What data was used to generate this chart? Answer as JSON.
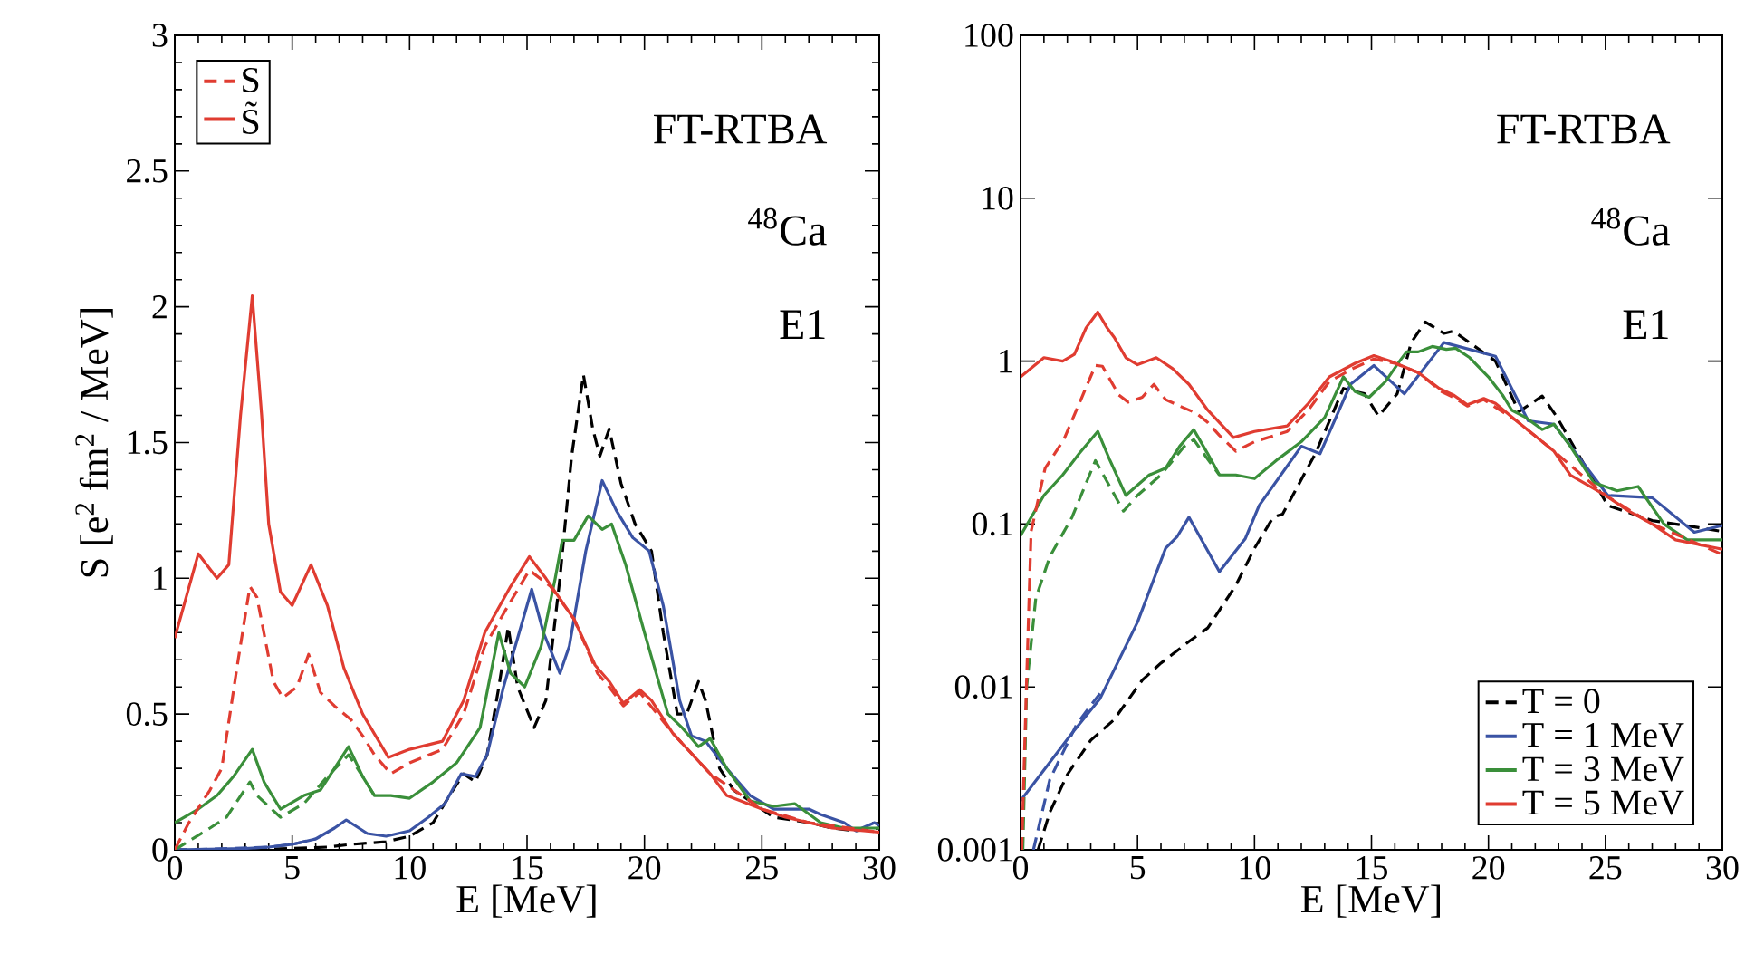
{
  "chart_data": [
    {
      "type": "line",
      "xlabel": "E [MeV]",
      "ylabel": "S [e$^{2}$ fm$^{2}$ / MeV]",
      "xlim": [
        0,
        30
      ],
      "ylim": [
        0,
        3
      ],
      "xticks": [
        0,
        5,
        10,
        15,
        20,
        25,
        30
      ],
      "yticks": [
        0,
        0.5,
        1,
        1.5,
        2,
        2.5,
        3
      ],
      "legend": "top left",
      "annotations": [
        "FT-RTBA",
        "$^{48}$Ca",
        "E1"
      ],
      "series": [
        {
          "color": "#000000",
          "line_style": "dashed",
          "x": [
            0,
            3,
            5,
            6.5,
            7.5,
            9,
            10,
            11,
            11.7,
            12.3,
            12.8,
            13.3,
            13.8,
            14.2,
            14.6,
            15.3,
            15.8,
            16.4,
            16.9,
            17.4,
            17.8,
            18.1,
            18.5,
            19,
            19.6,
            20.3,
            20.8,
            21.4,
            21.8,
            22.3,
            22.6,
            23.2,
            23.8,
            24.5,
            25.5,
            27,
            28,
            29,
            30
          ],
          "values": [
            0,
            0,
            0.005,
            0.01,
            0.02,
            0.03,
            0.05,
            0.1,
            0.2,
            0.28,
            0.25,
            0.35,
            0.6,
            0.82,
            0.6,
            0.45,
            0.55,
            1.0,
            1.45,
            1.75,
            1.55,
            1.45,
            1.55,
            1.35,
            1.2,
            1.1,
            0.8,
            0.5,
            0.5,
            0.62,
            0.55,
            0.3,
            0.22,
            0.18,
            0.12,
            0.1,
            0.08,
            0.07,
            0.08
          ]
        },
        {
          "color": "#3a53a4",
          "line_style": "solid",
          "x": [
            0,
            3,
            4,
            5,
            6,
            6.8,
            7.3,
            8.2,
            9,
            10,
            10.8,
            11.5,
            12.2,
            12.8,
            13.3,
            14,
            14.5,
            15.2,
            15.7,
            16.4,
            16.8,
            17.5,
            18.2,
            18.8,
            19.5,
            20.2,
            20.8,
            21.5,
            22,
            22.6,
            23.5,
            24.5,
            25.5,
            27,
            27.5,
            28.5,
            29,
            29.8,
            30
          ],
          "values": [
            0,
            0.005,
            0.01,
            0.02,
            0.04,
            0.08,
            0.11,
            0.06,
            0.05,
            0.07,
            0.12,
            0.17,
            0.28,
            0.27,
            0.35,
            0.6,
            0.75,
            0.96,
            0.8,
            0.65,
            0.75,
            1.1,
            1.36,
            1.25,
            1.15,
            1.1,
            0.9,
            0.55,
            0.42,
            0.4,
            0.3,
            0.2,
            0.15,
            0.15,
            0.13,
            0.1,
            0.07,
            0.1,
            0.09
          ]
        },
        {
          "color": "#3a53a4",
          "line_style": "dashed",
          "x": [
            0,
            1,
            2,
            3,
            4,
            5,
            6
          ],
          "values": [
            0,
            0.001,
            0.004,
            0.007,
            0.01,
            0.02,
            0.04
          ]
        },
        {
          "color": "#3a8f3a",
          "line_style": "solid",
          "x": [
            0,
            1,
            1.8,
            2.5,
            3.3,
            3.8,
            4.5,
            5.5,
            6.2,
            6.8,
            7.4,
            8,
            8.5,
            9.2,
            10,
            11,
            12,
            13,
            13.8,
            14.3,
            14.9,
            15.6,
            16.2,
            16.5,
            17,
            17.6,
            18.2,
            18.6,
            19.2,
            20,
            20.6,
            21,
            21.6,
            22.3,
            22.8,
            23.5,
            24.5,
            25.5,
            26.4,
            27.5,
            28.5,
            30
          ],
          "values": [
            0.1,
            0.15,
            0.2,
            0.27,
            0.37,
            0.25,
            0.15,
            0.2,
            0.22,
            0.3,
            0.38,
            0.27,
            0.2,
            0.2,
            0.19,
            0.25,
            0.32,
            0.45,
            0.8,
            0.65,
            0.6,
            0.75,
            1.0,
            1.14,
            1.14,
            1.23,
            1.18,
            1.2,
            1.05,
            0.8,
            0.62,
            0.5,
            0.45,
            0.38,
            0.41,
            0.3,
            0.18,
            0.16,
            0.17,
            0.1,
            0.08,
            0.08
          ]
        },
        {
          "color": "#3a8f3a",
          "line_style": "dashed",
          "x": [
            0,
            1.5,
            2.2,
            3.2,
            3.5,
            4.5,
            5.5,
            6.5,
            7.4,
            8,
            8.5
          ],
          "values": [
            0,
            0.08,
            0.12,
            0.25,
            0.2,
            0.12,
            0.17,
            0.27,
            0.35,
            0.27,
            0.2
          ]
        },
        {
          "name": "S",
          "color": "#e03c31",
          "line_style": "dashed",
          "x": [
            0,
            0.6,
            1.5,
            2.0,
            2.7,
            3.2,
            3.5,
            4.2,
            4.6,
            5.2,
            5.7,
            6.2,
            6.8,
            7.5,
            8,
            8.5,
            9.2,
            10,
            11.4,
            12.3,
            13.2,
            14.2,
            15.1,
            16,
            17,
            18,
            18.5,
            19.1,
            19.8,
            21.2,
            22.8,
            25,
            27,
            30
          ],
          "values": [
            0,
            0.1,
            0.22,
            0.3,
            0.7,
            0.97,
            0.93,
            0.62,
            0.56,
            0.6,
            0.72,
            0.58,
            0.53,
            0.48,
            0.42,
            0.35,
            0.28,
            0.32,
            0.37,
            0.5,
            0.75,
            0.9,
            1.03,
            0.97,
            0.85,
            0.65,
            0.6,
            0.53,
            0.58,
            0.43,
            0.28,
            0.15,
            0.1,
            0.065
          ]
        },
        {
          "name": "S̃",
          "color": "#e03c31",
          "line_style": "solid",
          "x": [
            0,
            1,
            1.8,
            2.3,
            2.8,
            3.3,
            3.7,
            4,
            4.5,
            5,
            5.8,
            6.5,
            7.2,
            8,
            9.1,
            10,
            11.4,
            12.3,
            13.2,
            14.3,
            15.1,
            15.8,
            17,
            17.9,
            18.5,
            19.1,
            19.8,
            20.3,
            21.2,
            22.8,
            23.5,
            25,
            26,
            27,
            28,
            30
          ],
          "values": [
            0.78,
            1.09,
            1.0,
            1.05,
            1.6,
            2.04,
            1.6,
            1.2,
            0.95,
            0.9,
            1.05,
            0.9,
            0.67,
            0.5,
            0.34,
            0.37,
            0.4,
            0.55,
            0.8,
            0.97,
            1.08,
            1.0,
            0.85,
            0.68,
            0.62,
            0.54,
            0.59,
            0.55,
            0.43,
            0.28,
            0.2,
            0.15,
            0.12,
            0.1,
            0.08,
            0.065
          ]
        }
      ]
    },
    {
      "type": "line",
      "xlabel": "E [MeV]",
      "xlim": [
        0,
        30
      ],
      "ylim": [
        0.001,
        100
      ],
      "log": true,
      "xticks": [
        0,
        5,
        10,
        15,
        20,
        25,
        30
      ],
      "yticks": [
        0.001,
        0.01,
        0.1,
        1,
        10,
        100
      ],
      "legend": "bottom right",
      "annotations": [
        "FT-RTBA",
        "$^{48}$Ca",
        "E1"
      ],
      "series": [
        {
          "name": "T = 0",
          "color": "#000000",
          "line_style": "dashed",
          "x": [
            0.75,
            1.25,
            2,
            3,
            4,
            5.2,
            6,
            7.2,
            8,
            9.2,
            10,
            10.8,
            11.2,
            12.6,
            13.8,
            14.7,
            15.3,
            16.1,
            16.7,
            17.3,
            18.1,
            18.5,
            20.3,
            21.3,
            22.3,
            22.9,
            25.1,
            27,
            29,
            30
          ],
          "values": [
            0.001,
            0.0017,
            0.0029,
            0.0047,
            0.0063,
            0.011,
            0.014,
            0.019,
            0.023,
            0.042,
            0.071,
            0.11,
            0.115,
            0.27,
            0.68,
            0.63,
            0.46,
            0.63,
            1.3,
            1.74,
            1.48,
            1.53,
            1.0,
            0.49,
            0.61,
            0.46,
            0.13,
            0.105,
            0.095,
            0.09
          ]
        },
        {
          "name": "T = 1 MeV",
          "color": "#3a53a4",
          "line_style": "solid",
          "x": [
            0,
            2.2,
            3.4,
            5,
            6.2,
            6.7,
            7.2,
            8.5,
            9.6,
            10.2,
            12,
            12.8,
            14.1,
            15.1,
            16.4,
            18.1,
            20.3,
            21.7,
            22.8,
            25.1,
            27,
            28.8,
            30
          ],
          "values": [
            0.002,
            0.0052,
            0.0085,
            0.025,
            0.071,
            0.084,
            0.11,
            0.051,
            0.081,
            0.13,
            0.3,
            0.27,
            0.72,
            0.94,
            0.63,
            1.3,
            1.07,
            0.43,
            0.41,
            0.15,
            0.145,
            0.089,
            0.098
          ]
        },
        {
          "color": "#3a53a4",
          "line_style": "dashed",
          "x": [
            0.55,
            1.25,
            2.4,
            3,
            3.5
          ],
          "values": [
            0.001,
            0.0027,
            0.0059,
            0.0077,
            0.0095
          ]
        },
        {
          "name": "T = 3 MeV",
          "color": "#3a8f3a",
          "line_style": "solid",
          "x": [
            0,
            1,
            1.8,
            2.5,
            3.3,
            3.8,
            4.5,
            5.5,
            6.2,
            6.8,
            7.4,
            8,
            8.5,
            9.2,
            10,
            11,
            12,
            13,
            13.8,
            14.3,
            14.9,
            15.6,
            16.2,
            16.5,
            17,
            17.6,
            18.2,
            18.6,
            19.2,
            20,
            20.6,
            21,
            21.6,
            22.3,
            22.8,
            23.5,
            24.5,
            25.5,
            26.4,
            27.5,
            28.5,
            30
          ],
          "values": [
            0.085,
            0.15,
            0.2,
            0.27,
            0.37,
            0.25,
            0.15,
            0.2,
            0.22,
            0.3,
            0.38,
            0.27,
            0.2,
            0.2,
            0.19,
            0.25,
            0.32,
            0.45,
            0.8,
            0.65,
            0.6,
            0.75,
            1.0,
            1.14,
            1.14,
            1.23,
            1.18,
            1.2,
            1.05,
            0.8,
            0.62,
            0.5,
            0.45,
            0.38,
            0.41,
            0.3,
            0.18,
            0.16,
            0.17,
            0.1,
            0.08,
            0.08
          ]
        },
        {
          "color": "#3a8f3a",
          "line_style": "dashed",
          "x": [
            0.1,
            0.26,
            0.65,
            1.25,
            2.2,
            3.2,
            4.4,
            5,
            6,
            7,
            7.4,
            8,
            8.5
          ],
          "values": [
            0.001,
            0.01,
            0.035,
            0.063,
            0.11,
            0.245,
            0.12,
            0.15,
            0.2,
            0.3,
            0.33,
            0.25,
            0.2
          ]
        },
        {
          "name": "T = 5 MeV",
          "color": "#e03c31",
          "line_style": "solid",
          "x": [
            0,
            1,
            1.8,
            2.3,
            2.8,
            3.3,
            3.7,
            4,
            4.5,
            5,
            5.8,
            6.5,
            7.2,
            8,
            9.1,
            10,
            11.4,
            12.3,
            13.2,
            14.3,
            15.1,
            15.8,
            17,
            17.9,
            18.5,
            19.1,
            19.8,
            20.3,
            21.2,
            22.8,
            23.5,
            25,
            26,
            27,
            28,
            30
          ],
          "values": [
            0.8,
            1.05,
            1.0,
            1.1,
            1.6,
            2.0,
            1.6,
            1.4,
            1.05,
            0.95,
            1.05,
            0.9,
            0.72,
            0.5,
            0.34,
            0.37,
            0.4,
            0.55,
            0.8,
            0.97,
            1.08,
            1.0,
            0.85,
            0.68,
            0.62,
            0.54,
            0.59,
            0.55,
            0.43,
            0.28,
            0.2,
            0.15,
            0.12,
            0.1,
            0.08,
            0.07
          ]
        },
        {
          "color": "#e03c31",
          "line_style": "dashed",
          "x": [
            0.05,
            0.25,
            0.45,
            1.05,
            1.85,
            2.6,
            3.2,
            3.5,
            4.2,
            4.6,
            5.2,
            5.7,
            6.2,
            6.8,
            7.5,
            8,
            8.5,
            9.2,
            10,
            11.4,
            12.3,
            13.2,
            14.2,
            15.1,
            16,
            17,
            18,
            18.5,
            19.1,
            19.8,
            21.2,
            22.8,
            25,
            27,
            30
          ],
          "values": [
            0.001,
            0.01,
            0.09,
            0.22,
            0.33,
            0.59,
            0.94,
            0.93,
            0.62,
            0.56,
            0.6,
            0.72,
            0.58,
            0.53,
            0.48,
            0.42,
            0.35,
            0.28,
            0.32,
            0.37,
            0.5,
            0.75,
            0.9,
            1.03,
            0.97,
            0.85,
            0.65,
            0.6,
            0.53,
            0.58,
            0.43,
            0.28,
            0.15,
            0.1,
            0.065
          ]
        }
      ]
    }
  ]
}
